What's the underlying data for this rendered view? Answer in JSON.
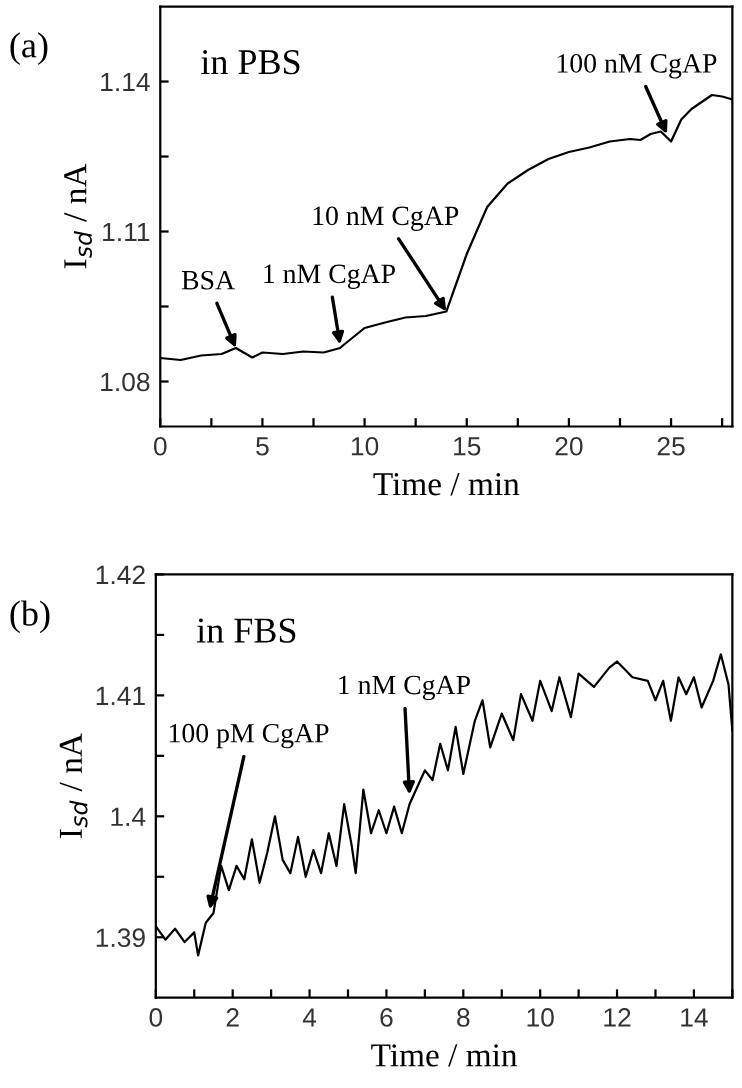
{
  "chart_data": [
    {
      "type": "line",
      "xlabel": "Time / min",
      "ylabel": "I$_{sd}$ / nA",
      "xlim": [
        0,
        28
      ],
      "xticks": [
        0,
        {
          "value": 2.5,
          "label": null
        },
        5,
        {
          "value": 7.5,
          "label": null
        },
        10,
        {
          "value": 12.5,
          "label": null
        },
        15,
        {
          "value": 17.5,
          "label": null
        },
        20,
        {
          "value": 22.5,
          "label": null
        },
        25,
        {
          "value": 27.5,
          "label": null
        }
      ],
      "ylim": [
        1.071,
        1.155
      ],
      "yticks": [
        1.08,
        {
          "value": 1.095,
          "label": null
        },
        1.11,
        {
          "value": 1.125,
          "label": null
        },
        1.14
      ],
      "series": [
        {
          "color": "#000000",
          "x": [
            0,
            1,
            2,
            3,
            3.7,
            4.5,
            5,
            6,
            7,
            8,
            8.8,
            9,
            10,
            11,
            12,
            13,
            14,
            15,
            16,
            17,
            18,
            19,
            20,
            21,
            22,
            23,
            23.5,
            24,
            24.5,
            25,
            25.5,
            26,
            27,
            27.5,
            28
          ],
          "values": [
            1.0847,
            1.0843,
            1.0852,
            1.0855,
            1.0867,
            1.0848,
            1.0858,
            1.0855,
            1.086,
            1.0858,
            1.0867,
            1.0874,
            1.0907,
            1.0918,
            1.0928,
            1.0931,
            1.094,
            1.1055,
            1.1149,
            1.1196,
            1.1223,
            1.1245,
            1.1259,
            1.1268,
            1.128,
            1.1285,
            1.1283,
            1.1295,
            1.13,
            1.128,
            1.1324,
            1.1345,
            1.1373,
            1.137,
            1.1364
          ]
        }
      ],
      "annotations": [
        "(a)",
        "in PBS",
        {
          "text": "BSA",
          "x": 3.7,
          "y": 1.0867
        },
        {
          "text": "1 nM CgAP",
          "x": 8.8,
          "y": 1.0874
        },
        {
          "text": "10 nM CgAP",
          "x": 14,
          "y": 1.094
        },
        {
          "text": "100 nM CgAP",
          "x": 24.8,
          "y": 1.1295
        }
      ]
    },
    {
      "type": "line",
      "xlabel": "Time / min",
      "ylabel": "I$_{sd}$ / nA",
      "xlim": [
        0,
        15
      ],
      "xticks": [
        0,
        {
          "value": 1,
          "label": null
        },
        2,
        {
          "value": 3,
          "label": null
        },
        4,
        {
          "value": 5,
          "label": null
        },
        6,
        {
          "value": 7,
          "label": null
        },
        8,
        {
          "value": 9,
          "label": null
        },
        10,
        {
          "value": 11,
          "label": null
        },
        12,
        {
          "value": 13,
          "label": null
        },
        14,
        {
          "value": 15,
          "label": null
        }
      ],
      "ylim": [
        1.385,
        1.42
      ],
      "yticks": [
        1.39,
        {
          "value": 1.395,
          "label": null
        },
        1.4,
        {
          "value": 1.405,
          "label": null
        },
        1.41,
        {
          "value": 1.415,
          "label": null
        },
        1.42
      ],
      "series": [
        {
          "color": "#000000",
          "x": [
            0,
            0.25,
            0.5,
            0.75,
            1.0,
            1.1,
            1.3,
            1.5,
            1.7,
            1.9,
            2.1,
            2.3,
            2.5,
            2.7,
            2.9,
            3.1,
            3.3,
            3.5,
            3.7,
            3.9,
            4.1,
            4.3,
            4.5,
            4.7,
            4.9,
            5.1,
            5.2,
            5.4,
            5.6,
            5.8,
            6.0,
            6.2,
            6.4,
            6.6,
            6.8,
            7.0,
            7.2,
            7.4,
            7.6,
            7.8,
            8.0,
            8.3,
            8.5,
            8.7,
            9.0,
            9.3,
            9.5,
            9.8,
            10.0,
            10.3,
            10.5,
            10.8,
            11.0,
            11.4,
            11.8,
            12.0,
            12.4,
            12.8,
            13.0,
            13.2,
            13.4,
            13.6,
            13.8,
            14.0,
            14.2,
            14.5,
            14.7,
            14.9,
            15.0
          ],
          "values": [
            1.3909,
            1.3898,
            1.3907,
            1.3896,
            1.3904,
            1.3885,
            1.3912,
            1.392,
            1.3959,
            1.3939,
            1.3959,
            1.3948,
            1.3981,
            1.3945,
            1.397,
            1.4,
            1.3964,
            1.3953,
            1.3983,
            1.395,
            1.3972,
            1.3953,
            1.3986,
            1.3959,
            1.401,
            1.3975,
            1.3953,
            1.4022,
            1.3986,
            1.4005,
            1.3986,
            1.4008,
            1.3986,
            1.401,
            1.4024,
            1.4038,
            1.403,
            1.406,
            1.4038,
            1.4074,
            1.4035,
            1.4079,
            1.4096,
            1.4057,
            1.4085,
            1.4063,
            1.4101,
            1.4079,
            1.4112,
            1.4087,
            1.4115,
            1.4082,
            1.4118,
            1.4107,
            1.4123,
            1.4128,
            1.4115,
            1.4112,
            1.4096,
            1.4112,
            1.4079,
            1.4115,
            1.4101,
            1.4115,
            1.409,
            1.4112,
            1.4134,
            1.4109,
            1.4071
          ]
        }
      ],
      "annotations": [
        "(b)",
        "in FBS",
        {
          "text": "100 pM CgAP",
          "x": 1.4,
          "y": 1.3923
        },
        {
          "text": "1 nM CgAP",
          "x": 6.6,
          "y": 1.4018
        }
      ]
    }
  ]
}
